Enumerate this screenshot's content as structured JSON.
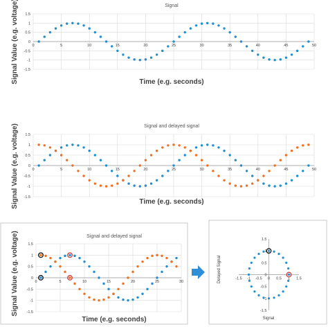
{
  "chart_data": [
    {
      "type": "scatter",
      "title": "Signal",
      "xlabel": "Time (e.g. seconds)",
      "ylabel": "Signal Value (e.g. voltage)",
      "xlim": [
        0,
        50
      ],
      "ylim": [
        -1.5,
        1.5
      ],
      "xticks": [
        "0",
        "5",
        "10",
        "15",
        "20",
        "25",
        "30",
        "35",
        "40",
        "45",
        "50"
      ],
      "yticks": [
        "1.5",
        "1",
        "0.5",
        "0",
        "-0.5",
        "-1",
        "-1.5"
      ],
      "grid": true,
      "series": [
        {
          "color": "#1f8fce",
          "x": [
            1,
            2,
            3,
            4,
            5,
            6,
            7,
            8,
            9,
            10,
            11,
            12,
            13,
            14,
            15,
            16,
            17,
            18,
            19,
            20,
            21,
            22,
            23,
            24,
            25,
            26,
            27,
            28,
            29,
            30,
            31,
            32,
            33,
            34,
            35,
            36,
            37,
            38,
            39,
            40,
            41,
            42,
            43,
            44,
            45,
            46,
            47,
            48,
            49
          ],
          "y": [
            0,
            0.26,
            0.5,
            0.71,
            0.87,
            0.97,
            1,
            0.97,
            0.87,
            0.71,
            0.5,
            0.26,
            0,
            -0.26,
            -0.5,
            -0.71,
            -0.87,
            -0.97,
            -1,
            -0.97,
            -0.87,
            -0.71,
            -0.5,
            -0.26,
            0,
            0.26,
            0.5,
            0.71,
            0.87,
            0.97,
            1,
            0.97,
            0.87,
            0.71,
            0.5,
            0.26,
            0,
            -0.26,
            -0.5,
            -0.71,
            -0.87,
            -0.97,
            -1,
            -0.97,
            -0.87,
            -0.71,
            -0.5,
            -0.26,
            0
          ]
        }
      ]
    },
    {
      "type": "scatter",
      "title": "Signal and delayed signal",
      "xlabel": "Time (e.g. seconds)",
      "ylabel": "Signal Value (e.g. voltage)",
      "xlim": [
        0,
        50
      ],
      "ylim": [
        -1.5,
        1.5
      ],
      "xticks": [
        "0",
        "5",
        "10",
        "15",
        "20",
        "25",
        "30",
        "35",
        "40",
        "45",
        "50"
      ],
      "yticks": [
        "1.5",
        "1",
        "0.5",
        "0",
        "-0.5",
        "-1",
        "-1.5"
      ],
      "grid": true,
      "series": [
        {
          "color": "#1f8fce",
          "x": [
            1,
            2,
            3,
            4,
            5,
            6,
            7,
            8,
            9,
            10,
            11,
            12,
            13,
            14,
            15,
            16,
            17,
            18,
            19,
            20,
            21,
            22,
            23,
            24,
            25,
            26,
            27,
            28,
            29,
            30,
            31,
            32,
            33,
            34,
            35,
            36,
            37,
            38,
            39,
            40,
            41,
            42,
            43,
            44,
            45,
            46,
            47,
            48,
            49
          ],
          "y": [
            0,
            0.26,
            0.5,
            0.71,
            0.87,
            0.97,
            1,
            0.97,
            0.87,
            0.71,
            0.5,
            0.26,
            0,
            -0.26,
            -0.5,
            -0.71,
            -0.87,
            -0.97,
            -1,
            -0.97,
            -0.87,
            -0.71,
            -0.5,
            -0.26,
            0,
            0.26,
            0.5,
            0.71,
            0.87,
            0.97,
            1,
            0.97,
            0.87,
            0.71,
            0.5,
            0.26,
            0,
            -0.26,
            -0.5,
            -0.71,
            -0.87,
            -0.97,
            -1,
            -0.97,
            -0.87,
            -0.71,
            -0.5,
            -0.26,
            0
          ]
        },
        {
          "color": "#f07020",
          "x": [
            1,
            2,
            3,
            4,
            5,
            6,
            7,
            8,
            9,
            10,
            11,
            12,
            13,
            14,
            15,
            16,
            17,
            18,
            19,
            20,
            21,
            22,
            23,
            24,
            25,
            26,
            27,
            28,
            29,
            30,
            31,
            32,
            33,
            34,
            35,
            36,
            37,
            38,
            39,
            40,
            41,
            42,
            43,
            44,
            45,
            46,
            47,
            48,
            49
          ],
          "y": [
            1,
            0.97,
            0.87,
            0.71,
            0.5,
            0.26,
            0,
            -0.26,
            -0.5,
            -0.71,
            -0.87,
            -0.97,
            -1,
            -0.97,
            -0.87,
            -0.71,
            -0.5,
            -0.26,
            0,
            0.26,
            0.5,
            0.71,
            0.87,
            0.97,
            1,
            0.97,
            0.87,
            0.71,
            0.5,
            0.26,
            0,
            -0.26,
            -0.5,
            -0.71,
            -0.87,
            -0.97,
            -1,
            -0.97,
            -0.87,
            -0.71,
            -0.5,
            -0.26,
            0,
            0.26,
            0.5,
            0.71,
            0.87,
            0.97,
            1
          ]
        }
      ]
    },
    {
      "type": "scatter",
      "title": "Signal and delayed signal",
      "xlabel": "Time (e.g. seconds)",
      "ylabel": "Signal Value (e.g. voltage)",
      "xlim": [
        0,
        30
      ],
      "ylim": [
        -1.5,
        1.5
      ],
      "xticks": [
        "0",
        "5",
        "10",
        "15",
        "20",
        "25",
        "30"
      ],
      "yticks": [
        "1.5",
        "1",
        "0.5",
        "0",
        "-0.5",
        "-1",
        "-1.5"
      ],
      "grid": true,
      "series": [
        {
          "color": "#1f8fce",
          "x": [
            1,
            2,
            3,
            4,
            5,
            6,
            7,
            8,
            9,
            10,
            11,
            12,
            13,
            14,
            15,
            16,
            17,
            18,
            19,
            20,
            21,
            22,
            23,
            24,
            25,
            26,
            27,
            28,
            29
          ],
          "y": [
            0,
            0.26,
            0.5,
            0.71,
            0.87,
            0.97,
            1,
            0.97,
            0.87,
            0.71,
            0.5,
            0.26,
            0,
            -0.26,
            -0.5,
            -0.71,
            -0.87,
            -0.97,
            -1,
            -0.97,
            -0.87,
            -0.71,
            -0.5,
            -0.26,
            0,
            0.26,
            0.5,
            0.71,
            0.87
          ]
        },
        {
          "color": "#f07020",
          "x": [
            1,
            2,
            3,
            4,
            5,
            6,
            7,
            8,
            9,
            10,
            11,
            12,
            13,
            14,
            15,
            16,
            17,
            18,
            19,
            20,
            21,
            22,
            23,
            24,
            25,
            26,
            27,
            28,
            29
          ],
          "y": [
            1,
            0.97,
            0.87,
            0.71,
            0.5,
            0.26,
            0,
            -0.26,
            -0.5,
            -0.71,
            -0.87,
            -0.97,
            -1,
            -0.97,
            -0.87,
            -0.71,
            -0.5,
            -0.26,
            0,
            0.26,
            0.5,
            0.71,
            0.87,
            0.97,
            1,
            0.97,
            0.87,
            0.71,
            0.5
          ]
        }
      ],
      "highlights": [
        {
          "x": 1,
          "y": 0,
          "ring": "#111111"
        },
        {
          "x": 1,
          "y": 1,
          "ring": "#111111"
        },
        {
          "x": 7,
          "y": 1,
          "ring": "#d23b3b"
        },
        {
          "x": 7,
          "y": 0,
          "ring": "#d23b3b"
        }
      ]
    },
    {
      "type": "scatter",
      "title": "",
      "xlabel": "Signal",
      "ylabel": "Delayed Signal",
      "xlim": [
        -1.5,
        1.5
      ],
      "ylim": [
        -1.5,
        1.5
      ],
      "xticks": [
        "-1.5",
        "-1",
        "-0.5",
        "0",
        "0.5",
        "1",
        "1.5"
      ],
      "yticks": [
        "1.5",
        "1",
        "0.5",
        "0",
        "-0.5",
        "-1",
        "-1.5"
      ],
      "grid": false,
      "series": [
        {
          "color": "#1f8fce",
          "x": [
            0,
            0.26,
            0.5,
            0.71,
            0.87,
            0.97,
            1,
            0.97,
            0.87,
            0.71,
            0.5,
            0.26,
            0,
            -0.26,
            -0.5,
            -0.71,
            -0.87,
            -0.97,
            -1,
            -0.97,
            -0.87,
            -0.71,
            -0.5,
            -0.26
          ],
          "y": [
            1,
            0.97,
            0.87,
            0.71,
            0.5,
            0.26,
            0,
            -0.26,
            -0.5,
            -0.71,
            -0.87,
            -0.97,
            -1,
            -0.97,
            -0.87,
            -0.71,
            -0.5,
            -0.26,
            0,
            0.26,
            0.5,
            0.71,
            0.87,
            0.97
          ]
        }
      ],
      "highlights": [
        {
          "x": 0,
          "y": 1,
          "ring": "#111111"
        },
        {
          "x": 1,
          "y": 0,
          "ring": "#d23b3b"
        }
      ]
    }
  ],
  "arrow_color": "#2e8fd6",
  "frame_color": "#c8c8c8"
}
